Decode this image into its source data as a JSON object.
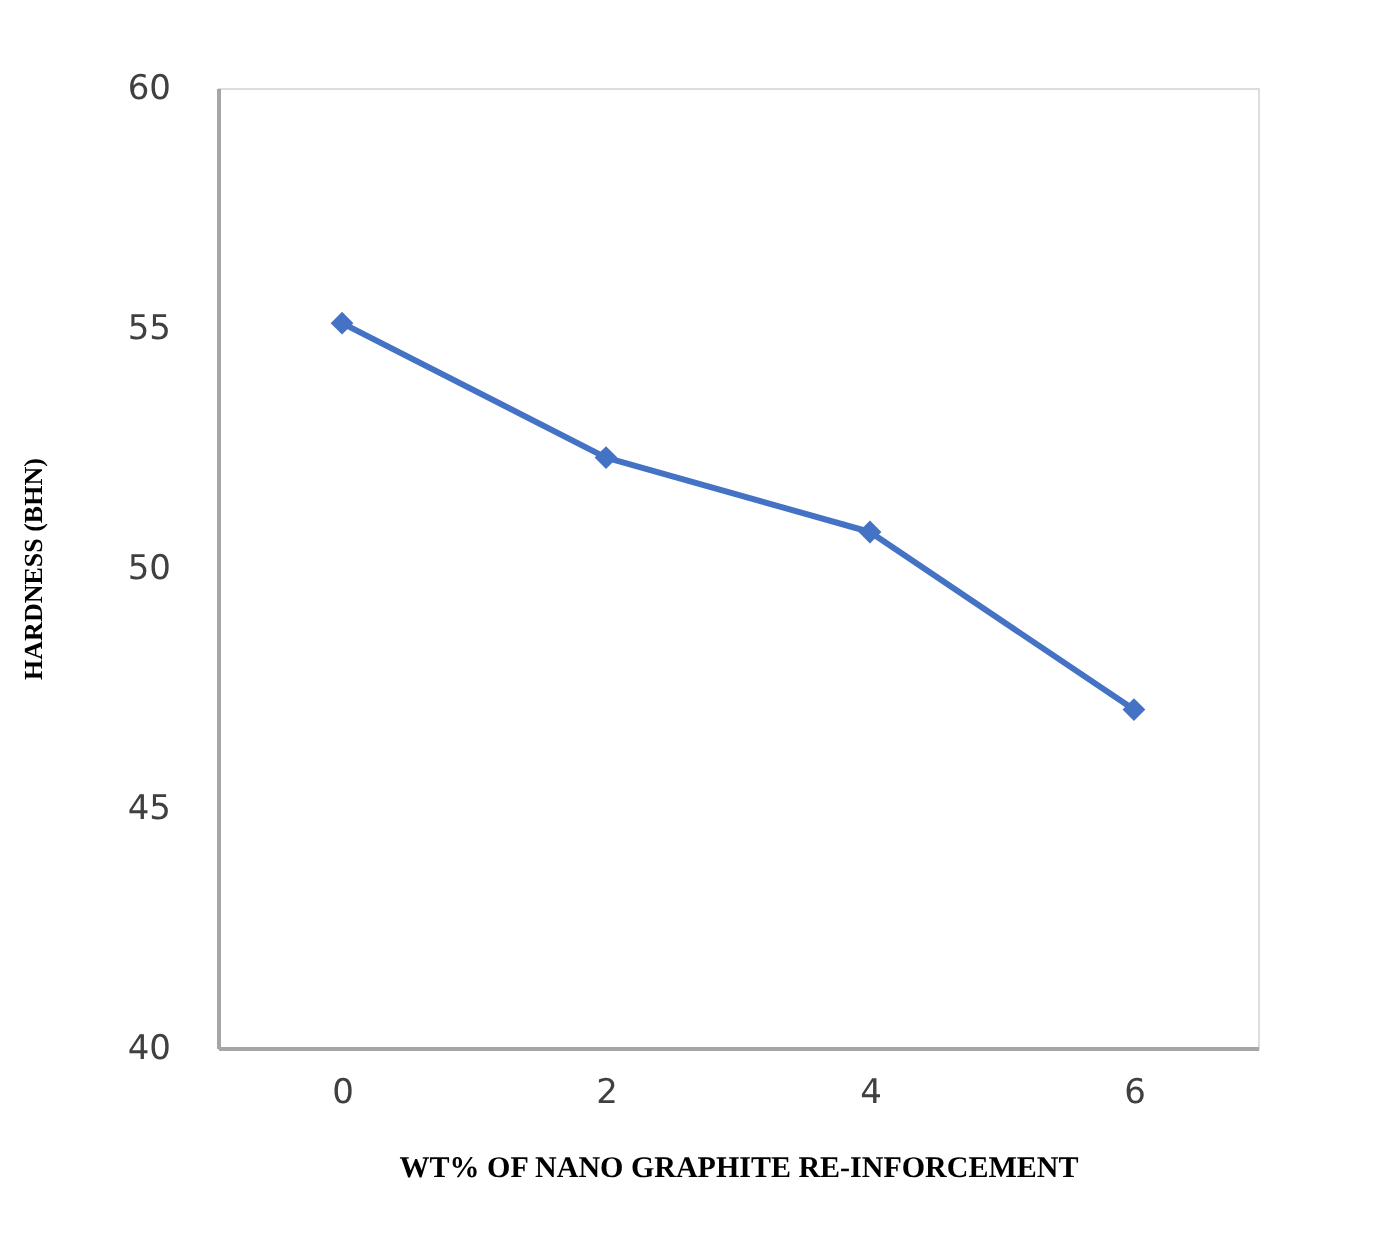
{
  "chart_data": {
    "type": "line",
    "xlabel": "WT% OF NANO GRAPHITE RE-INFORCEMENT",
    "ylabel": "HARDNESS (BHN)",
    "categories": [
      "0",
      "2",
      "4",
      "6"
    ],
    "series": [
      {
        "color": "#4472c4",
        "values": [
          55.1,
          52.3,
          50.75,
          47.05
        ]
      }
    ],
    "ylim": [
      40,
      60
    ],
    "yticks": [
      40,
      45,
      50,
      55,
      60
    ],
    "grid": false,
    "marker": "diamond",
    "line_style": "solid"
  }
}
